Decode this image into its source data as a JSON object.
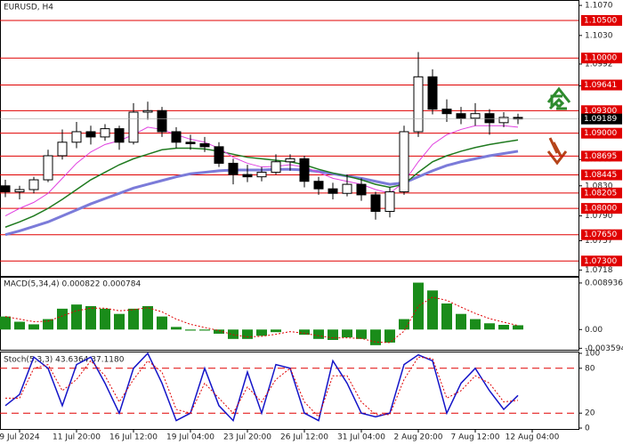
{
  "chart_data": [
    {
      "type": "candlestick",
      "title": "EURUSD, H4",
      "categories": [
        null,
        "9 Jul 2024",
        null,
        null,
        null,
        "11 Jul 20:00",
        null,
        null,
        null,
        "16 Jul 12:00",
        null,
        null,
        null,
        "19 Jul 04:00",
        null,
        null,
        null,
        "23 Jul 20:00",
        null,
        null,
        null,
        "26 Jul 12:00",
        null,
        null,
        null,
        "31 Jul 04:00",
        null,
        null,
        null,
        "2 Aug 20:00",
        null,
        null,
        null,
        "7 Aug 12:00",
        null,
        null,
        null,
        "12 Aug 04:00"
      ],
      "open": [
        1.083,
        1.0822,
        1.0825,
        1.0838,
        1.087,
        1.0888,
        1.0902,
        1.0895,
        1.0906,
        1.0888,
        1.0928,
        1.093,
        1.0902,
        1.0888,
        1.0886,
        1.0882,
        1.086,
        1.0845,
        1.0842,
        1.0848,
        1.0862,
        1.0866,
        1.0836,
        1.0826,
        1.082,
        1.0832,
        1.0818,
        1.0796,
        1.0822,
        1.0902,
        1.0975,
        1.0932,
        1.0926,
        1.092,
        1.0926,
        1.0914,
        1.0921,
        null
      ],
      "high": [
        1.0838,
        1.083,
        1.0842,
        1.0878,
        1.0905,
        1.0915,
        1.091,
        1.0912,
        1.091,
        1.094,
        1.0942,
        1.0935,
        1.0908,
        1.0898,
        1.0895,
        1.0888,
        1.0866,
        1.0858,
        1.0855,
        1.0872,
        1.0872,
        1.087,
        1.0842,
        1.0834,
        1.0845,
        1.084,
        1.0822,
        1.0828,
        1.091,
        1.1008,
        1.0985,
        1.0945,
        1.0935,
        1.094,
        1.0932,
        1.0928,
        1.0926,
        null
      ],
      "low": [
        1.0815,
        1.0812,
        1.082,
        1.0835,
        1.0865,
        1.088,
        1.0885,
        1.089,
        1.0878,
        1.0885,
        1.0918,
        1.0895,
        1.088,
        1.0878,
        1.0875,
        1.0855,
        1.0832,
        1.0835,
        1.0836,
        1.0845,
        1.085,
        1.0828,
        1.0818,
        1.0812,
        1.0816,
        1.081,
        1.0785,
        1.0788,
        1.0818,
        1.0895,
        1.0925,
        1.0915,
        1.0912,
        1.091,
        1.0898,
        1.0908,
        1.0912,
        null
      ],
      "close": [
        1.0822,
        1.0825,
        1.0838,
        1.087,
        1.0888,
        1.0902,
        1.0895,
        1.0906,
        1.0888,
        1.0928,
        1.093,
        1.0902,
        1.0888,
        1.0886,
        1.0882,
        1.086,
        1.0845,
        1.0842,
        1.0848,
        1.0862,
        1.0866,
        1.0836,
        1.0826,
        1.082,
        1.0832,
        1.0818,
        1.0796,
        1.0822,
        1.0902,
        1.0975,
        1.0932,
        1.0926,
        1.092,
        1.0926,
        1.0914,
        1.0921,
        1.09189,
        null
      ],
      "series": [
        {
          "color": "#7b7bd9",
          "line_width": 3,
          "values": [
            1.0765,
            1.077,
            1.0776,
            1.0782,
            1.079,
            1.0798,
            1.0806,
            1.0813,
            1.082,
            1.0827,
            1.0832,
            1.0837,
            1.0842,
            1.0846,
            1.0848,
            1.085,
            1.0851,
            1.0851,
            1.0851,
            1.0852,
            1.0852,
            1.0851,
            1.0849,
            1.0846,
            1.0843,
            1.084,
            1.0836,
            1.0832,
            1.0834,
            1.0842,
            1.085,
            1.0857,
            1.0862,
            1.0866,
            1.087,
            1.0873,
            1.0876,
            null
          ]
        },
        {
          "color": "#1f7a1f",
          "line_width": 1.5,
          "values": [
            1.0775,
            1.0782,
            1.079,
            1.08,
            1.0812,
            1.0825,
            1.0838,
            1.0848,
            1.0858,
            1.0866,
            1.0872,
            1.0878,
            1.088,
            1.088,
            1.0879,
            1.0876,
            1.0872,
            1.0868,
            1.0866,
            1.0864,
            1.0862,
            1.0858,
            1.0852,
            1.0847,
            1.0843,
            1.0838,
            1.0832,
            1.0828,
            1.0832,
            1.0848,
            1.0862,
            1.087,
            1.0876,
            1.0881,
            1.0885,
            1.0888,
            1.0891,
            null
          ]
        },
        {
          "color": "#e040e0",
          "line_width": 1,
          "values": [
            1.079,
            1.08,
            1.0808,
            1.082,
            1.084,
            1.086,
            1.0875,
            1.0885,
            1.089,
            1.0898,
            1.0908,
            1.0905,
            1.0898,
            1.0892,
            1.0888,
            1.088,
            1.0868,
            1.086,
            1.0855,
            1.0856,
            1.0858,
            1.0855,
            1.0848,
            1.084,
            1.0836,
            1.0832,
            1.0825,
            1.082,
            1.0835,
            1.0862,
            1.0885,
            1.0898,
            1.0905,
            1.091,
            1.091,
            1.091,
            1.0908,
            null
          ]
        }
      ],
      "ylim": [
        1.0709,
        1.1076
      ],
      "yticks": [
        {
          "value": 1.107,
          "label": "1.1070"
        },
        {
          "value": 1.103,
          "label": "1.1030"
        },
        1.0992,
        1.0963,
        1.0865,
        {
          "value": 1.083,
          "label": "1.0830"
        },
        {
          "value": 1.079,
          "label": "1.0790"
        },
        1.0757,
        1.0718
      ],
      "levels": [
        {
          "value": 1.105,
          "label": "1.10500"
        },
        {
          "value": 1.1,
          "label": "1.10000"
        },
        1.09641,
        {
          "value": 1.093,
          "label": "1.09300"
        },
        {
          "value": 1.09,
          "label": "1.09000"
        },
        1.08695,
        1.08445,
        1.08205,
        {
          "value": 1.08,
          "label": "1.08000"
        },
        {
          "value": 1.0765,
          "label": "1.07650"
        },
        {
          "value": 1.073,
          "label": "1.07300"
        }
      ],
      "level_color": "#e00000",
      "last_price": 1.09189
    },
    {
      "type": "macd",
      "title": "MACD(5,34,4) 0.000822 0.000784",
      "color": "#1a8c1a",
      "values": [
        0.0025,
        0.0015,
        0.001,
        0.002,
        0.004,
        0.0048,
        0.0045,
        0.004,
        0.003,
        0.004,
        0.0045,
        0.0025,
        0.0005,
        -0.0002,
        -0.0002,
        -0.0008,
        -0.0018,
        -0.0018,
        -0.0012,
        -0.0005,
        0.0,
        -0.001,
        -0.0018,
        -0.002,
        -0.0015,
        -0.0018,
        -0.003,
        -0.0025,
        0.002,
        0.009,
        0.0075,
        0.005,
        0.003,
        0.002,
        0.0012,
        0.0009,
        0.000822,
        null
      ],
      "signal": {
        "color": "#e00000",
        "values": [
          0.0025,
          0.002,
          0.0015,
          0.0016,
          0.0026,
          0.0036,
          0.0041,
          0.0041,
          0.0036,
          0.0038,
          0.0042,
          0.0034,
          0.002,
          0.001,
          0.0004,
          -0.0002,
          -0.001,
          -0.0014,
          -0.0013,
          -0.0009,
          -0.0004,
          -0.0007,
          -0.0012,
          -0.0016,
          -0.0016,
          -0.0017,
          -0.0024,
          -0.0025,
          -0.0003,
          0.0045,
          0.0062,
          0.0056,
          0.0043,
          0.0031,
          0.0021,
          0.0014,
          0.000784,
          null
        ]
      },
      "ylim": [
        -0.00388,
        0.00995
      ],
      "yticks": [
        0.008936,
        {
          "value": 0,
          "label": "0.00"
        },
        -0.003594
      ]
    },
    {
      "type": "stochastic",
      "title": "Stoch(5,3,3) 43.6364 37.1180",
      "series": [
        {
          "color": "#1414c8",
          "line_width": 1.5,
          "values": [
            30,
            45,
            95,
            80,
            30,
            85,
            95,
            60,
            20,
            80,
            100,
            60,
            10,
            20,
            80,
            30,
            10,
            75,
            20,
            85,
            80,
            20,
            10,
            90,
            60,
            20,
            15,
            20,
            85,
            98,
            90,
            20,
            60,
            80,
            50,
            25,
            43.6364,
            null
          ]
        },
        {
          "color": "#e00000",
          "line_width": 1,
          "dashed": true,
          "values": [
            40,
            40,
            80,
            85,
            50,
            65,
            90,
            70,
            35,
            65,
            90,
            75,
            25,
            20,
            60,
            40,
            20,
            55,
            35,
            65,
            80,
            35,
            15,
            70,
            70,
            35,
            18,
            18,
            65,
            95,
            93,
            40,
            50,
            70,
            60,
            35,
            37.118,
            null
          ]
        }
      ],
      "ylim": [
        0,
        100
      ],
      "yticks": [
        100,
        80,
        20,
        0
      ],
      "levels": [
        80,
        20
      ],
      "level_color": "#e00000"
    }
  ]
}
